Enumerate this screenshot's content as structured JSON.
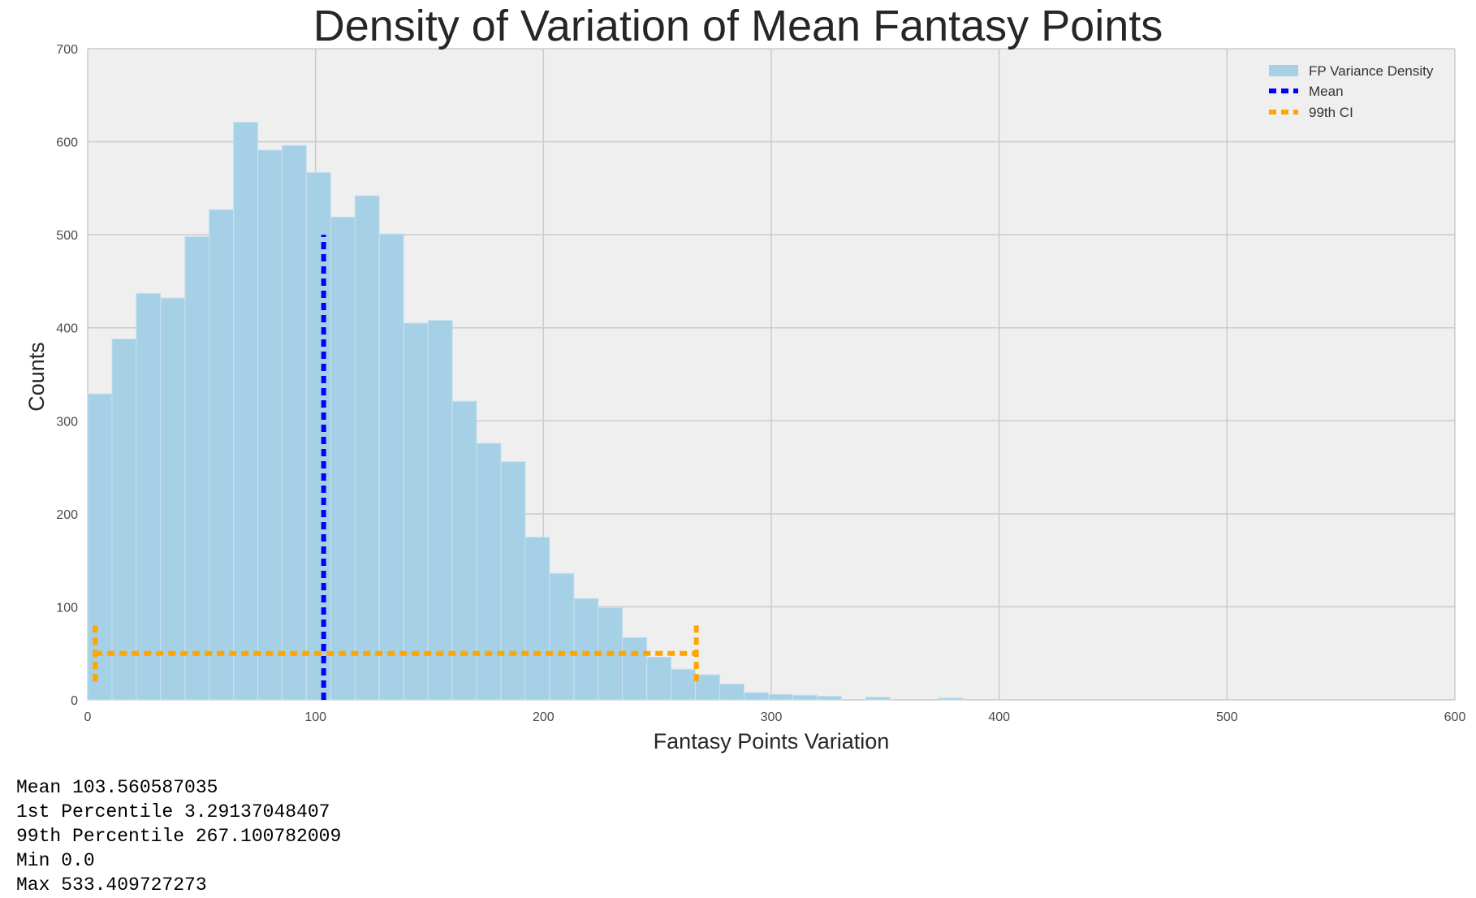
{
  "chart_data": {
    "type": "bar",
    "title": "Density of Variation of Mean Fantasy Points",
    "xlabel": "Fantasy Points Variation",
    "ylabel": "Counts",
    "xlim": [
      0,
      600
    ],
    "ylim": [
      0,
      700
    ],
    "xticks": [
      0,
      100,
      200,
      300,
      400,
      500,
      600
    ],
    "yticks": [
      0,
      100,
      200,
      300,
      400,
      500,
      600,
      700
    ],
    "grid": true,
    "legend_position": "top-right",
    "bin_width": 10.668,
    "series": [
      {
        "name": "FP Variance Density",
        "color": "#a6d0e6",
        "bins": [
          {
            "x": 0.0,
            "value": 329
          },
          {
            "x": 10.7,
            "value": 388
          },
          {
            "x": 21.3,
            "value": 437
          },
          {
            "x": 32.0,
            "value": 432
          },
          {
            "x": 42.7,
            "value": 498
          },
          {
            "x": 53.3,
            "value": 527
          },
          {
            "x": 64.0,
            "value": 621
          },
          {
            "x": 74.7,
            "value": 591
          },
          {
            "x": 85.3,
            "value": 596
          },
          {
            "x": 96.0,
            "value": 567
          },
          {
            "x": 106.7,
            "value": 519
          },
          {
            "x": 117.3,
            "value": 542
          },
          {
            "x": 128.0,
            "value": 501
          },
          {
            "x": 138.7,
            "value": 405
          },
          {
            "x": 149.4,
            "value": 408
          },
          {
            "x": 160.0,
            "value": 321
          },
          {
            "x": 170.7,
            "value": 276
          },
          {
            "x": 181.4,
            "value": 256
          },
          {
            "x": 192.0,
            "value": 175
          },
          {
            "x": 202.7,
            "value": 136
          },
          {
            "x": 213.4,
            "value": 109
          },
          {
            "x": 224.0,
            "value": 99
          },
          {
            "x": 234.7,
            "value": 67
          },
          {
            "x": 245.4,
            "value": 46
          },
          {
            "x": 256.0,
            "value": 33
          },
          {
            "x": 266.7,
            "value": 27
          },
          {
            "x": 277.4,
            "value": 17
          },
          {
            "x": 288.0,
            "value": 8
          },
          {
            "x": 298.7,
            "value": 6
          },
          {
            "x": 309.4,
            "value": 5
          },
          {
            "x": 320.1,
            "value": 4
          },
          {
            "x": 341.4,
            "value": 3
          },
          {
            "x": 373.4,
            "value": 2
          }
        ]
      },
      {
        "name": "Mean",
        "color": "#0000ff",
        "style": "dashed",
        "x": 103.56,
        "y_range": [
          0,
          500
        ]
      },
      {
        "name": "99th CI",
        "color": "#ffa500",
        "style": "dashed",
        "x_low": 3.29,
        "x_high": 267.1,
        "y_level": 50,
        "cap_range": [
          20,
          80
        ]
      }
    ]
  },
  "stats": {
    "mean": "Mean 103.560587035",
    "p1": "1st Percentile 3.29137048407",
    "p99": "99th Percentile 267.100782009",
    "min": "Min 0.0",
    "max": "Max 533.409727273"
  }
}
